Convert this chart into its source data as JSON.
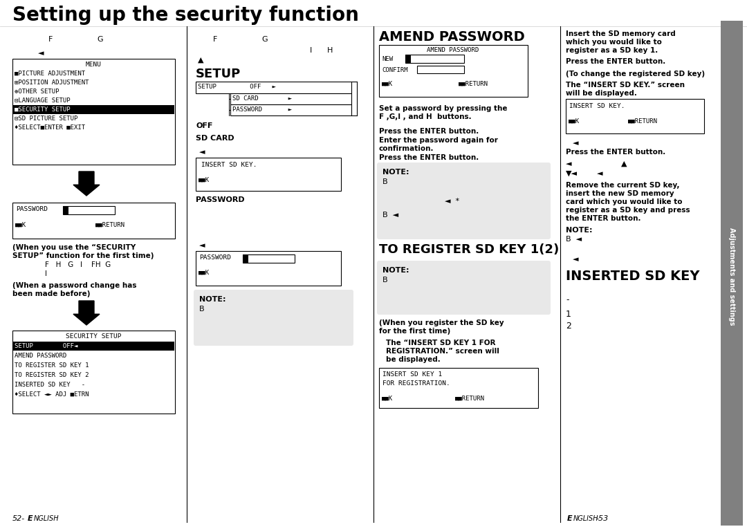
{
  "title": "Setting up the security function",
  "bg_color": "#ffffff",
  "page_left": "52-",
  "page_right": "ENGLISH-53",
  "sidebar_text": "Adjustments and settings",
  "sidebar_color": "#888888"
}
